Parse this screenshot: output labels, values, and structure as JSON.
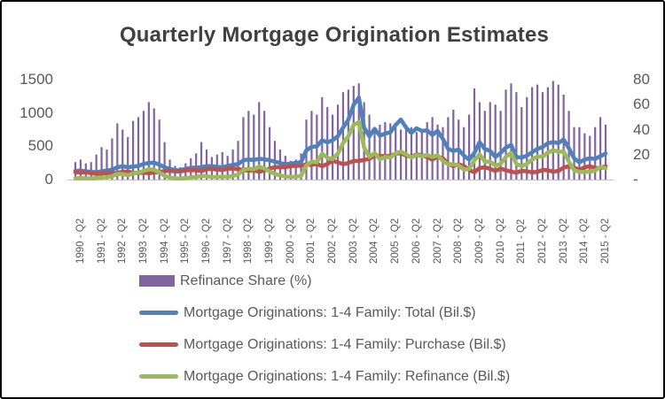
{
  "window": {
    "title": "Quarterly Mortgage Origination Estimates"
  },
  "colors": {
    "bar": "#8064A2",
    "total_line": "#4F81BD",
    "purchase_line": "#C0504D",
    "refinance_line": "#9BBB59",
    "title_text": "#404040",
    "axis_text": "#595959",
    "axis_line": "#C3C3C3",
    "border": "#000000",
    "background": "#FFFFFF"
  },
  "chart_data": {
    "type": "combo",
    "title": "Quarterly Mortgage Origination Estimates",
    "x_start": "1990-Q1",
    "x_freq": "quarterly",
    "n_points": 102,
    "grid": "off",
    "legend_position": "bottom-left",
    "x_tick_labels": [
      "1990 - Q2",
      "1991 - Q2",
      "1992 - Q2",
      "1993 - Q2",
      "1994 - Q2",
      "1995 - Q2",
      "1996 - Q2",
      "1997 - Q2",
      "1998 - Q2",
      "1999 - Q2",
      "2000 - Q2",
      "2001 - Q2",
      "2002 - Q2",
      "2003 - Q2",
      "2004 - Q2",
      "2005 - Q2",
      "2006 - Q2",
      "2007 - Q2",
      "2008 - Q2",
      "2009 - Q2",
      "2010 - Q2",
      "2011 - Q2",
      "2012 - Q2",
      "2013 - Q2",
      "2014 - Q2",
      "2015 - Q2"
    ],
    "left_axis": {
      "range": [
        0,
        1500
      ],
      "ticks": [
        1500,
        1000,
        500,
        0
      ],
      "tick_labels": [
        "1500",
        "1000",
        "500",
        "0"
      ]
    },
    "right_axis": {
      "range": [
        0,
        80
      ],
      "ticks": [
        80,
        60,
        40,
        20,
        0
      ],
      "tick_labels": [
        "80",
        "60",
        "40",
        "20",
        "-"
      ]
    },
    "series": [
      {
        "name": "Refinance Share (%)",
        "type": "bar",
        "axis": "right",
        "color": "#8064A2",
        "values": [
          14,
          16,
          13,
          14,
          20,
          26,
          24,
          33,
          45,
          40,
          34,
          47,
          50,
          55,
          62,
          57,
          48,
          30,
          16,
          11,
          10,
          13,
          17,
          21,
          30,
          24,
          18,
          20,
          22,
          19,
          24,
          31,
          50,
          55,
          52,
          62,
          55,
          42,
          31,
          24,
          19,
          15,
          16,
          21,
          48,
          55,
          52,
          66,
          58,
          52,
          60,
          70,
          72,
          75,
          77,
          62,
          52,
          40,
          44,
          46,
          45,
          42,
          40,
          44,
          42,
          38,
          40,
          46,
          50,
          44,
          42,
          50,
          56,
          48,
          42,
          52,
          73,
          62,
          55,
          62,
          60,
          55,
          72,
          77,
          70,
          58,
          66,
          74,
          76,
          70,
          74,
          79,
          76,
          68,
          55,
          42,
          42,
          37,
          35,
          42,
          50,
          44
        ]
      },
      {
        "name": "Mortgage Originations: 1-4 Family: Total (Bil.$)",
        "type": "line",
        "axis": "left",
        "color": "#4F81BD",
        "values": [
          130,
          135,
          125,
          115,
          110,
          125,
          135,
          150,
          185,
          200,
          185,
          195,
          205,
          235,
          250,
          255,
          225,
          185,
          160,
          140,
          140,
          160,
          175,
          180,
          185,
          205,
          200,
          190,
          185,
          205,
          220,
          235,
          290,
          300,
          295,
          310,
          305,
          290,
          270,
          250,
          230,
          240,
          250,
          265,
          440,
          490,
          500,
          590,
          560,
          590,
          650,
          780,
          900,
          1120,
          1230,
          780,
          650,
          760,
          660,
          690,
          710,
          820,
          900,
          780,
          700,
          770,
          730,
          740,
          670,
          730,
          610,
          460,
          430,
          450,
          360,
          300,
          400,
          560,
          460,
          430,
          340,
          400,
          480,
          520,
          340,
          330,
          360,
          410,
          460,
          490,
          545,
          560,
          550,
          600,
          470,
          320,
          260,
          300,
          320,
          310,
          350,
          390
        ]
      },
      {
        "name": "Mortgage Originations: 1-4 Family: Purchase (Bil.$)",
        "type": "line",
        "axis": "left",
        "color": "#C0504D",
        "values": [
          110,
          112,
          107,
          98,
          86,
          92,
          100,
          100,
          100,
          118,
          120,
          102,
          100,
          105,
          95,
          108,
          115,
          128,
          133,
          123,
          124,
          138,
          144,
          141,
          128,
          155,
          162,
          150,
          143,
          165,
          166,
          160,
          144,
          135,
          140,
          118,
          136,
          167,
          184,
          188,
          185,
          202,
          208,
          208,
          228,
          220,
          238,
          200,
          234,
          282,
          260,
          232,
          250,
          280,
          282,
          295,
          310,
          360,
          355,
          350,
          355,
          390,
          395,
          360,
          340,
          380,
          365,
          340,
          300,
          345,
          320,
          240,
          200,
          230,
          205,
          145,
          110,
          175,
          185,
          160,
          130,
          165,
          140,
          120,
          105,
          130,
          125,
          110,
          115,
          145,
          140,
          120,
          130,
          180,
          200,
          180,
          145,
          185,
          200,
          175,
          170,
          200
        ]
      },
      {
        "name": "Mortgage Originations: 1-4 Family: Refinance (Bil.$)",
        "type": "line",
        "axis": "left",
        "color": "#9BBB59",
        "values": [
          20,
          23,
          18,
          17,
          24,
          33,
          35,
          50,
          85,
          82,
          65,
          93,
          105,
          130,
          155,
          147,
          110,
          57,
          27,
          17,
          16,
          22,
          31,
          39,
          57,
          50,
          38,
          40,
          42,
          40,
          54,
          75,
          146,
          165,
          155,
          192,
          169,
          123,
          86,
          62,
          45,
          38,
          42,
          57,
          212,
          270,
          262,
          390,
          326,
          308,
          390,
          548,
          650,
          820,
          860,
          485,
          340,
          400,
          305,
          340,
          330,
          395,
          420,
          380,
          330,
          370,
          350,
          370,
          340,
          365,
          280,
          230,
          230,
          215,
          150,
          160,
          290,
          380,
          270,
          270,
          210,
          235,
          340,
          400,
          235,
          200,
          235,
          300,
          345,
          345,
          405,
          440,
          420,
          420,
          270,
          140,
          115,
          115,
          120,
          135,
          190,
          170
        ]
      }
    ]
  },
  "legend": [
    {
      "label": "Refinance Share (%)",
      "swatch": "bar",
      "color": "#8064A2"
    },
    {
      "label": "Mortgage Originations: 1-4 Family: Total (Bil.$)",
      "swatch": "line",
      "color": "#4F81BD"
    },
    {
      "label": "Mortgage Originations: 1-4 Family: Purchase (Bil.$)",
      "swatch": "line",
      "color": "#C0504D"
    },
    {
      "label": "Mortgage Originations: 1-4 Family: Refinance (Bil.$)",
      "swatch": "line",
      "color": "#9BBB59"
    }
  ]
}
